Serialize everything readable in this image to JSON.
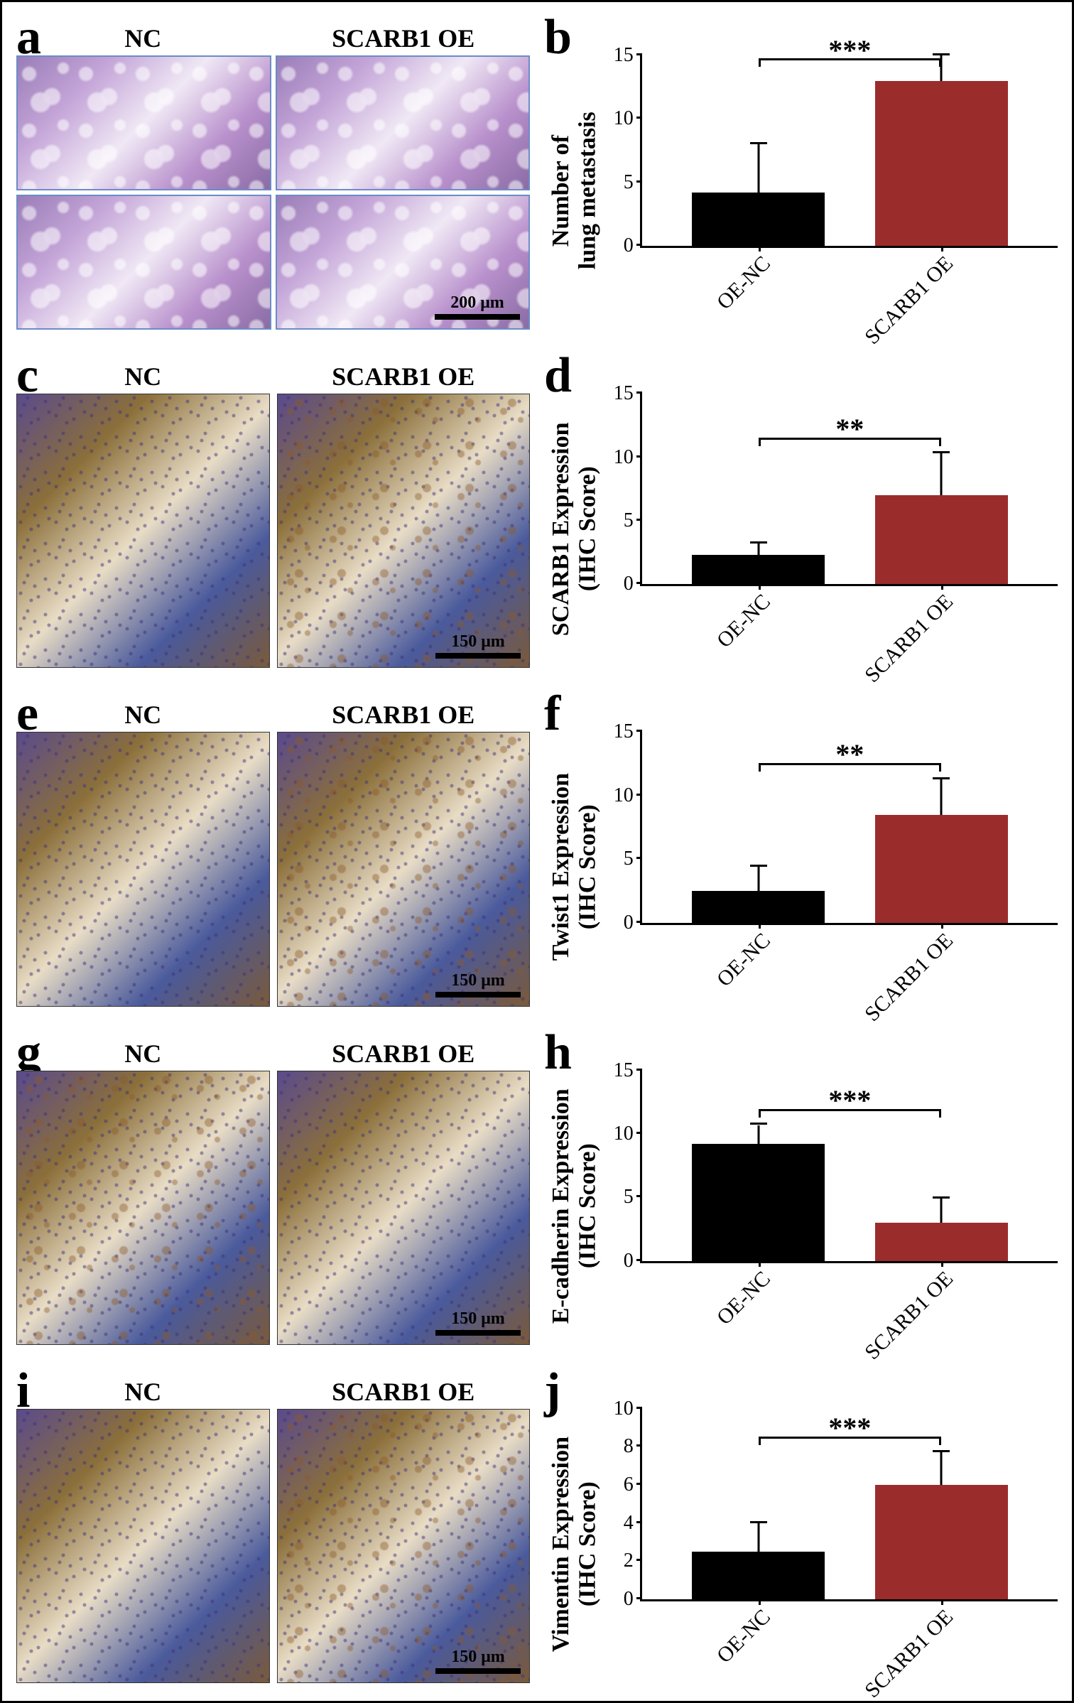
{
  "panels": {
    "a": {
      "letter": "a",
      "nc_label": "NC",
      "oe_label": "SCARB1 OE",
      "scale_text": "200 μm",
      "scale_color": "#000000"
    },
    "c": {
      "letter": "c",
      "nc_label": "NC",
      "oe_label": "SCARB1 OE",
      "scale_text": "150 μm"
    },
    "e": {
      "letter": "e",
      "nc_label": "NC",
      "oe_label": "SCARB1 OE",
      "scale_text": "150 μm"
    },
    "g": {
      "letter": "g",
      "nc_label": "NC",
      "oe_label": "SCARB1 OE",
      "scale_text": "150 μm"
    },
    "i": {
      "letter": "i",
      "nc_label": "NC",
      "oe_label": "SCARB1 OE",
      "scale_text": "150 μm"
    }
  },
  "charts": {
    "b": {
      "letter": "b",
      "y_label": "Number of\nlung metastasis",
      "y_max": 15,
      "y_ticks": [
        0,
        5,
        10,
        15
      ],
      "nc_value": 4.2,
      "nc_err": 3.8,
      "oe_value": 13.0,
      "oe_err": 2.0,
      "x_labels": [
        "OE-NC",
        "SCARB1 OE"
      ],
      "significance": "***",
      "nc_color": "#000000",
      "oe_color": "#9b2c2c"
    },
    "d": {
      "letter": "d",
      "y_label": "SCARB1 Expression\n(IHC Score)",
      "y_max": 15,
      "y_ticks": [
        0,
        5,
        10,
        15
      ],
      "nc_value": 2.3,
      "nc_err": 0.9,
      "oe_value": 7.0,
      "oe_err": 3.3,
      "x_labels": [
        "OE-NC",
        "SCARB1 OE"
      ],
      "significance": "**",
      "nc_color": "#000000",
      "oe_color": "#9b2c2c"
    },
    "f": {
      "letter": "f",
      "y_label": "Twist1 Expression\n(IHC Score)",
      "y_max": 15,
      "y_ticks": [
        0,
        5,
        10,
        15
      ],
      "nc_value": 2.5,
      "nc_err": 1.9,
      "oe_value": 8.5,
      "oe_err": 2.8,
      "x_labels": [
        "OE-NC",
        "SCARB1 OE"
      ],
      "significance": "**",
      "nc_color": "#000000",
      "oe_color": "#9b2c2c"
    },
    "h": {
      "letter": "h",
      "y_label": "E-cadherin Expression\n(IHC Score)",
      "y_max": 15,
      "y_ticks": [
        0,
        5,
        10,
        15
      ],
      "nc_value": 9.2,
      "nc_err": 1.5,
      "oe_value": 3.0,
      "oe_err": 1.9,
      "x_labels": [
        "OE-NC",
        "SCARB1 OE"
      ],
      "significance": "***",
      "nc_color": "#000000",
      "oe_color": "#9b2c2c"
    },
    "j": {
      "letter": "j",
      "y_label": "Vimentin Expression\n(IHC Score)",
      "y_max": 10,
      "y_ticks": [
        0,
        2,
        4,
        6,
        8,
        10
      ],
      "nc_value": 2.5,
      "nc_err": 1.5,
      "oe_value": 6.0,
      "oe_err": 1.7,
      "x_labels": [
        "OE-NC",
        "SCARB1 OE"
      ],
      "significance": "***",
      "nc_color": "#000000",
      "oe_color": "#9b2c2c"
    }
  },
  "style": {
    "panel_letter_fontsize": 70,
    "col_label_fontsize": 36,
    "y_label_fontsize": 34,
    "tick_fontsize": 28,
    "x_label_fontsize": 30,
    "sig_fontsize": 40,
    "border_color": "#000000",
    "background": "#ffffff",
    "image_border_color": "#6b8cc7"
  }
}
